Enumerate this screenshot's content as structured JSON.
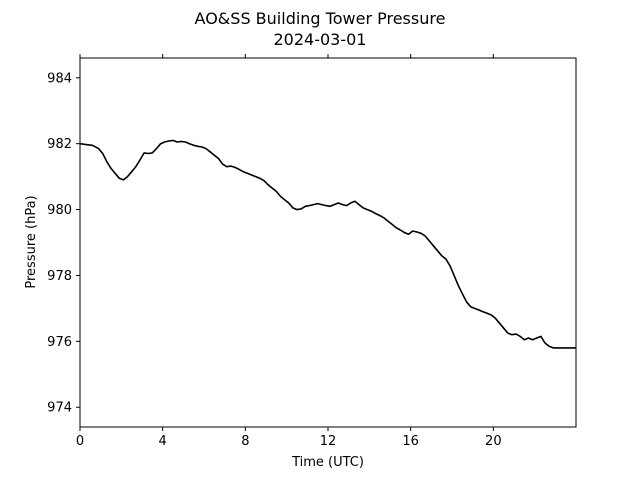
{
  "chart_data": {
    "type": "line",
    "title": "AO&SS Building Tower Pressure",
    "subtitle": "2024-03-01",
    "xlabel": "Time (UTC)",
    "ylabel": "Pressure (hPa)",
    "xlim": [
      0,
      24
    ],
    "ylim": [
      973.4,
      984.6
    ],
    "xticks": [
      0,
      4,
      8,
      12,
      16,
      20
    ],
    "yticks": [
      974,
      976,
      978,
      980,
      982,
      984
    ],
    "grid": false,
    "line_color": "#000000",
    "series": [
      {
        "x": [
          0,
          0.3,
          0.6,
          0.9,
          1.1,
          1.3,
          1.5,
          1.7,
          1.9,
          2.1,
          2.3,
          2.5,
          2.7,
          2.9,
          3.1,
          3.3,
          3.5,
          3.7,
          3.9,
          4.1,
          4.3,
          4.5,
          4.7,
          4.9,
          5.1,
          5.3,
          5.5,
          5.7,
          5.9,
          6.1,
          6.3,
          6.5,
          6.7,
          6.9,
          7.1,
          7.3,
          7.5,
          7.7,
          7.9,
          8.1,
          8.3,
          8.5,
          8.7,
          8.9,
          9.1,
          9.3,
          9.5,
          9.7,
          9.9,
          10.1,
          10.3,
          10.5,
          10.7,
          10.9,
          11.1,
          11.3,
          11.5,
          11.7,
          11.9,
          12.1,
          12.3,
          12.5,
          12.7,
          12.9,
          13.1,
          13.3,
          13.5,
          13.7,
          13.9,
          14.1,
          14.3,
          14.5,
          14.7,
          14.9,
          15.1,
          15.3,
          15.5,
          15.7,
          15.9,
          16.1,
          16.3,
          16.5,
          16.7,
          16.9,
          17.1,
          17.3,
          17.5,
          17.7,
          17.9,
          18.1,
          18.3,
          18.5,
          18.7,
          18.9,
          19.1,
          19.3,
          19.5,
          19.7,
          19.9,
          20.1,
          20.3,
          20.5,
          20.7,
          20.9,
          21.1,
          21.3,
          21.5,
          21.7,
          21.9,
          22.1,
          22.3,
          22.5,
          22.7,
          22.9,
          23.1,
          23.3,
          23.5,
          23.7,
          23.9,
          24.0
        ],
        "y": [
          982.0,
          981.97,
          981.95,
          981.85,
          981.7,
          981.45,
          981.25,
          981.1,
          980.95,
          980.9,
          981.0,
          981.15,
          981.3,
          981.5,
          981.72,
          981.7,
          981.72,
          981.85,
          982.0,
          982.05,
          982.08,
          982.1,
          982.05,
          982.07,
          982.05,
          982.0,
          981.95,
          981.92,
          981.9,
          981.85,
          981.75,
          981.65,
          981.55,
          981.38,
          981.3,
          981.32,
          981.28,
          981.22,
          981.15,
          981.1,
          981.05,
          981.0,
          980.95,
          980.88,
          980.75,
          980.65,
          980.55,
          980.4,
          980.3,
          980.2,
          980.05,
          980.0,
          980.02,
          980.1,
          980.12,
          980.15,
          980.18,
          980.15,
          980.12,
          980.1,
          980.15,
          980.2,
          980.15,
          980.12,
          980.2,
          980.25,
          980.15,
          980.05,
          980.0,
          979.95,
          979.88,
          979.82,
          979.75,
          979.65,
          979.55,
          979.45,
          979.38,
          979.3,
          979.25,
          979.35,
          979.32,
          979.28,
          979.2,
          979.05,
          978.9,
          978.75,
          978.6,
          978.5,
          978.3,
          978.0,
          977.7,
          977.45,
          977.2,
          977.05,
          977.0,
          976.95,
          976.9,
          976.85,
          976.8,
          976.7,
          976.55,
          976.4,
          976.25,
          976.2,
          976.22,
          976.15,
          976.05,
          976.1,
          976.05,
          976.1,
          976.15,
          975.95,
          975.85,
          975.8,
          975.8,
          975.8,
          975.8,
          975.8,
          975.8,
          975.8
        ]
      }
    ]
  }
}
